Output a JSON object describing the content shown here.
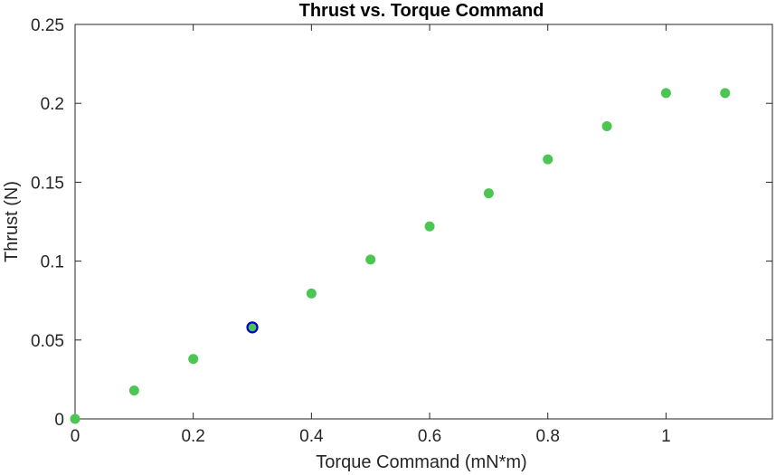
{
  "chart_data": {
    "type": "scatter",
    "title": "Thrust vs. Torque Command",
    "xlabel": "Torque Command (mN*m)",
    "ylabel": "Thrust (N)",
    "xlim": [
      0,
      1.18
    ],
    "ylim": [
      0,
      0.25
    ],
    "x_ticks": [
      0,
      0.2,
      0.4,
      0.6,
      0.8,
      1
    ],
    "x_tick_labels": [
      "0",
      "0.2",
      "0.4",
      "0.6",
      "0.8",
      "1"
    ],
    "y_ticks": [
      0,
      0.05,
      0.1,
      0.15,
      0.2,
      0.25
    ],
    "y_tick_labels": [
      "0",
      "0.05",
      "0.1",
      "0.15",
      "0.2",
      "0.25"
    ],
    "grid": false,
    "marker_color": "#4cc552",
    "highlight_color": "#0000cc",
    "series": [
      {
        "x": [
          0,
          0.1,
          0.2,
          0.3,
          0.4,
          0.5,
          0.6,
          0.7,
          0.8,
          0.9,
          1.0,
          1.1
        ],
        "y": [
          0,
          0.018,
          0.038,
          0.058,
          0.0795,
          0.101,
          0.122,
          0.143,
          0.1645,
          0.1855,
          0.2065,
          0.2065
        ]
      }
    ],
    "highlighted_point": {
      "x": 0.3,
      "y": 0.058
    }
  }
}
